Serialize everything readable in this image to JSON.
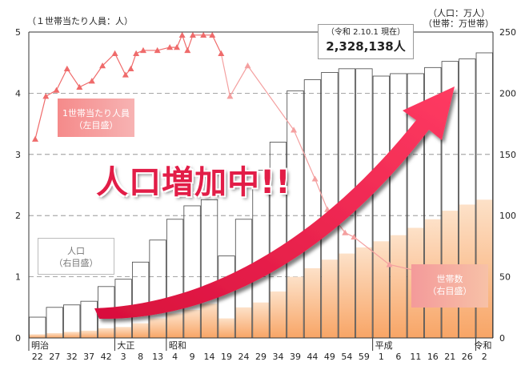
{
  "chart_data": {
    "type": "bar+line",
    "left_unit": "（１世帯当たり人員：人）",
    "right_unit_line1": "（人口：万人）",
    "right_unit_line2": "（世帯：万世帯）",
    "left_ylim": [
      0,
      5
    ],
    "left_ticks": [
      "0",
      "1",
      "2",
      "3",
      "4",
      "5"
    ],
    "right_ylim": [
      0,
      250
    ],
    "right_ticks": [
      "0",
      "50",
      "100",
      "150",
      "200",
      "250"
    ],
    "x_tick_labels": [
      "22",
      "27",
      "32",
      "37",
      "42",
      "3",
      "8",
      "13",
      "4",
      "9",
      "14",
      "19",
      "24",
      "29",
      "34",
      "39",
      "44",
      "49",
      "54",
      "59",
      "1",
      "6",
      "11",
      "16",
      "21",
      "26",
      "2"
    ],
    "eras": [
      {
        "label": "明治",
        "index": 0
      },
      {
        "label": "大正",
        "index": 5
      },
      {
        "label": "昭和",
        "index": 8
      },
      {
        "label": "平成",
        "index": 20
      },
      {
        "label": "令和",
        "index": 26
      }
    ],
    "population": [
      17,
      25,
      27,
      30,
      42,
      48,
      62,
      80,
      97,
      108,
      113,
      67,
      97,
      137,
      160,
      202,
      211,
      217,
      220,
      220,
      214,
      216,
      216,
      221,
      226,
      228,
      233
    ],
    "households": [
      3,
      4,
      5,
      6,
      8,
      9,
      12,
      16,
      20,
      23,
      28,
      16,
      25,
      29,
      38,
      50,
      57,
      64,
      69,
      74,
      79,
      84,
      90,
      97,
      104,
      109,
      113
    ],
    "persons_per_household": [
      3.25,
      3.95,
      4.05,
      4.4,
      4.1,
      4.2,
      4.45,
      4.65,
      4.3,
      4.4,
      4.65,
      4.7,
      4.7,
      4.75,
      4.75,
      4.95,
      4.7,
      4.95,
      4.95,
      4.95,
      4.65,
      3.95,
      4.45,
      3.4,
      2.6,
      2.1,
      1.72,
      1.65,
      1.2,
      1.0
    ],
    "persons_x": [
      0,
      0.6,
      1.2,
      1.8,
      2.5,
      3.2,
      3.8,
      4.5,
      5.1,
      5.4,
      5.7,
      6.1,
      6.9,
      7.6,
      8.0,
      8.3,
      8.6,
      8.9,
      9.5,
      10.0,
      10.5,
      11.0,
      12.0,
      14.6,
      15.8,
      16.5,
      17.5,
      18.0,
      20.0,
      23.0
    ],
    "persons_x_scale_note": "",
    "current": {
      "date": "（令和 2.10.1 現在）",
      "value": "2,328,138人"
    },
    "headline": "人口増加中!!",
    "legend_persons": [
      "1世帯当たり人員",
      "（左目盛）"
    ],
    "legend_population": [
      "人口",
      "（右目盛）"
    ],
    "legend_households": [
      "世帯数",
      "（右目盛）"
    ],
    "colors": {
      "persons_line": "#ef6b6b",
      "population_bar_stroke": "#444444",
      "household_bar_top": "#f8a566",
      "household_bar_bottom": "#fde1c8",
      "arrow": "#e8194a"
    }
  }
}
